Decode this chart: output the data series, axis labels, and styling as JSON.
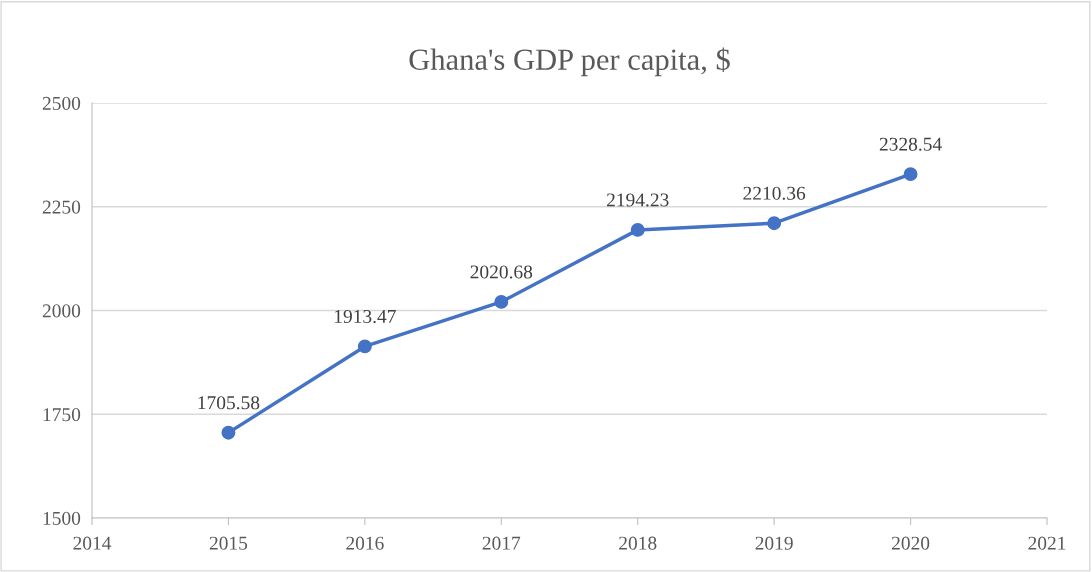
{
  "chart_data": {
    "type": "line",
    "title": "Ghana's GDP per capita, $",
    "x": [
      2015,
      2016,
      2017,
      2018,
      2019,
      2020
    ],
    "series": [
      {
        "color": "#4472c4",
        "values": [
          1705.58,
          1913.47,
          2020.68,
          2194.23,
          2210.36,
          2328.54
        ]
      }
    ],
    "xlim": [
      2014,
      2021
    ],
    "xticks": [
      2014,
      2015,
      2016,
      2017,
      2018,
      2019,
      2020,
      2021
    ],
    "ylim": [
      1500,
      2500
    ],
    "yticks": [
      1500,
      1750,
      2000,
      2250,
      2500
    ],
    "grid": "y",
    "marker": "circle",
    "line_style": "solid",
    "data_labels": true
  }
}
